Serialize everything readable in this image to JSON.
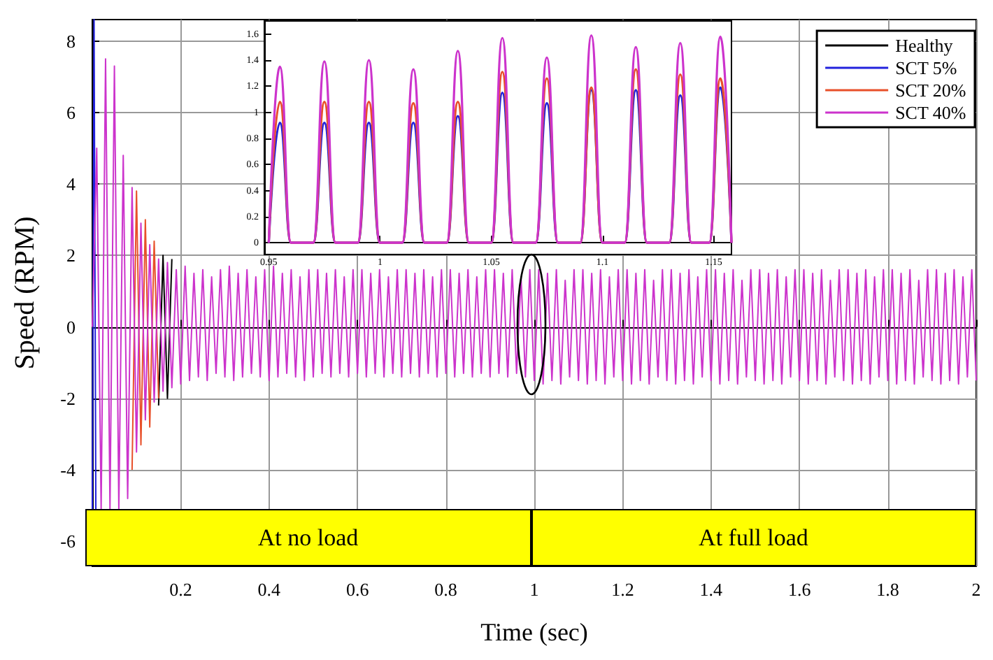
{
  "chart_data": [
    {
      "type": "line",
      "xlabel": "Time (sec)",
      "ylabel": "Speed (RPM)",
      "xlim": [
        0,
        2
      ],
      "ylim": [
        -6.7,
        8.6
      ],
      "xticks": [
        0.2,
        0.4,
        0.6,
        0.8,
        1,
        1.2,
        1.4,
        1.6,
        1.8,
        2
      ],
      "yticks": [
        -6,
        -4,
        -2,
        0,
        2,
        4,
        6,
        8
      ],
      "grid": true,
      "legend": "top right",
      "annotations": [
        "At no load",
        "At full load"
      ],
      "x": [
        0,
        0.01,
        0.02,
        0.03,
        0.04,
        0.05,
        0.06,
        0.07,
        0.08,
        0.09,
        0.1,
        0.11,
        0.12,
        0.13,
        0.14,
        0.15,
        0.16,
        0.17,
        0.18,
        0.19,
        0.2,
        0.21,
        0.22,
        0.23,
        0.24,
        0.25,
        0.26,
        0.27,
        0.28,
        0.29,
        0.3,
        0.31,
        0.32,
        0.33,
        0.34,
        0.35,
        0.36,
        0.37,
        0.38,
        0.39,
        0.4,
        0.41,
        0.42,
        0.43,
        0.44,
        0.45,
        0.46,
        0.47,
        0.48,
        0.49,
        0.5,
        0.51,
        0.52,
        0.53,
        0.54,
        0.55,
        0.56,
        0.57,
        0.58,
        0.59,
        0.6,
        0.61,
        0.62,
        0.63,
        0.64,
        0.65,
        0.66,
        0.67,
        0.68,
        0.69,
        0.7,
        0.71,
        0.72,
        0.73,
        0.74,
        0.75,
        0.76,
        0.77,
        0.78,
        0.79,
        0.8,
        0.81,
        0.82,
        0.83,
        0.84,
        0.85,
        0.86,
        0.87,
        0.88,
        0.89,
        0.9,
        0.91,
        0.92,
        0.93,
        0.94,
        0.95,
        0.96,
        0.97,
        0.98,
        0.99,
        1,
        1.01,
        1.02,
        1.03,
        1.04,
        1.05,
        1.06,
        1.07,
        1.08,
        1.09,
        1.1,
        1.11,
        1.12,
        1.13,
        1.14,
        1.15,
        1.16,
        1.17,
        1.18,
        1.19,
        1.2,
        1.21,
        1.22,
        1.23,
        1.24,
        1.25,
        1.26,
        1.27,
        1.28,
        1.29,
        1.3,
        1.31,
        1.32,
        1.33,
        1.34,
        1.35,
        1.36,
        1.37,
        1.38,
        1.39,
        1.4,
        1.41,
        1.42,
        1.43,
        1.44,
        1.45,
        1.46,
        1.47,
        1.48,
        1.49,
        1.5,
        1.51,
        1.52,
        1.53,
        1.54,
        1.55,
        1.56,
        1.57,
        1.58,
        1.59,
        1.6,
        1.61,
        1.62,
        1.63,
        1.64,
        1.65,
        1.66,
        1.67,
        1.68,
        1.69,
        1.7,
        1.71,
        1.72,
        1.73,
        1.74,
        1.75,
        1.76,
        1.77,
        1.78,
        1.79,
        1.8,
        1.81,
        1.82,
        1.83,
        1.84,
        1.85,
        1.86,
        1.87,
        1.88,
        1.89,
        1.9,
        1.91,
        1.92,
        1.93,
        1.94,
        1.95,
        1.96,
        1.97,
        1.98,
        1.99,
        2
      ],
      "series": [
        {
          "name": "Healthy",
          "color": "#000000",
          "x": [
            0.15,
            0.16,
            0.17,
            0.18
          ],
          "values": [
            -2.2,
            2.0,
            -2.0,
            1.9
          ]
        },
        {
          "name": "SCT 5%",
          "color": "#2222dd",
          "x": [
            0,
            0.004,
            0.008
          ],
          "values": [
            -5.1,
            8.6,
            -5.1
          ]
        },
        {
          "name": "SCT 20%",
          "color": "#e8502a",
          "x": [
            0.09,
            0.1,
            0.11,
            0.12,
            0.13,
            0.14,
            0.15
          ],
          "values": [
            -4.0,
            3.8,
            -3.3,
            3.0,
            -2.8,
            2.4,
            -2.0
          ]
        },
        {
          "name": "SCT 40%",
          "color": "#cc33cc",
          "values": [
            0,
            5.0,
            -5.1,
            7.5,
            -5.1,
            7.3,
            -5.1,
            4.8,
            -4.8,
            3.9,
            -3.5,
            2.9,
            -2.6,
            2.3,
            -2.1,
            1.9,
            -1.8,
            1.8,
            -1.7,
            1.6,
            -1.6,
            1.7,
            -1.5,
            1.5,
            -1.4,
            1.6,
            -1.5,
            1.4,
            -1.3,
            1.6,
            -1.4,
            1.7,
            -1.5,
            1.5,
            -1.4,
            1.6,
            -1.3,
            1.4,
            -1.4,
            1.6,
            -1.5,
            1.7,
            -1.4,
            1.5,
            -1.3,
            1.6,
            -1.4,
            1.4,
            -1.5,
            1.6,
            -1.4,
            1.6,
            -1.3,
            1.5,
            -1.4,
            1.6,
            -1.3,
            1.4,
            -1.4,
            1.6,
            -1.3,
            1.6,
            -1.4,
            1.5,
            -1.3,
            1.6,
            -1.4,
            1.4,
            -1.3,
            1.6,
            -1.4,
            1.6,
            -1.3,
            1.5,
            -1.4,
            1.6,
            -1.3,
            1.4,
            -1.4,
            1.6,
            -1.3,
            1.6,
            -1.4,
            1.5,
            -1.3,
            1.6,
            -1.4,
            1.4,
            -1.3,
            1.6,
            -1.4,
            1.6,
            -1.3,
            1.5,
            -1.4,
            1.6,
            -1.3,
            1.4,
            -1.4,
            1.6,
            -1.5,
            1.6,
            -1.6,
            1.5,
            -1.5,
            1.6,
            -1.6,
            1.3,
            -1.4,
            1.6,
            -1.5,
            1.6,
            -1.6,
            1.5,
            -1.5,
            1.6,
            -1.6,
            1.4,
            -1.4,
            1.6,
            -1.5,
            1.6,
            -1.6,
            1.5,
            -1.5,
            1.6,
            -1.6,
            1.3,
            -1.4,
            1.6,
            -1.5,
            1.6,
            -1.6,
            1.5,
            -1.5,
            1.6,
            -1.6,
            1.4,
            -1.4,
            1.6,
            -1.5,
            1.6,
            -1.6,
            1.5,
            -1.5,
            1.6,
            -1.6,
            1.3,
            -1.4,
            1.6,
            -1.5,
            1.6,
            -1.6,
            1.5,
            -1.5,
            1.6,
            -1.6,
            1.4,
            -1.4,
            1.6,
            -1.5,
            1.6,
            -1.6,
            1.5,
            -1.5,
            1.6,
            -1.6,
            1.3,
            -1.4,
            1.6,
            -1.5,
            1.6,
            -1.6,
            1.5,
            -1.5,
            1.6,
            -1.6,
            1.4,
            -1.4,
            1.6,
            -1.5,
            1.6,
            -1.6,
            1.5,
            -1.5,
            1.6,
            -1.6,
            1.3,
            -1.4,
            1.6,
            -1.5,
            1.6,
            -1.6,
            1.5,
            -1.5,
            1.6,
            -1.6,
            1.4,
            -1.4,
            1.6,
            -1.5
          ]
        }
      ]
    },
    {
      "type": "line",
      "xlim": [
        0.948,
        1.158
      ],
      "ylim": [
        -0.09,
        1.7
      ],
      "xticks": [
        0.95,
        1,
        1.05,
        1.1,
        1.15
      ],
      "yticks": [
        0,
        0.2,
        0.4,
        0.6,
        0.8,
        1,
        1.2,
        1.4,
        1.6
      ],
      "x": [
        0.95,
        0.955,
        0.96,
        0.97,
        0.975,
        0.98,
        0.99,
        0.995,
        1,
        1.01,
        1.015,
        1.02,
        1.03,
        1.035,
        1.04,
        1.05,
        1.055,
        1.06,
        1.07,
        1.075,
        1.08,
        1.09,
        1.095,
        1.1,
        1.11,
        1.115,
        1.12,
        1.13,
        1.135,
        1.14,
        1.148,
        1.153,
        1.158
      ],
      "series": [
        {
          "color": "#2222dd",
          "values": [
            0,
            0.92,
            0,
            0,
            0.92,
            0,
            0,
            0.92,
            0,
            0,
            0.92,
            0,
            0,
            0.97,
            0,
            0,
            1.15,
            0,
            0,
            1.07,
            0,
            0,
            1.17,
            0,
            0,
            1.17,
            0,
            0,
            1.13,
            0,
            0,
            1.19,
            0
          ]
        },
        {
          "color": "#e8502a",
          "values": [
            0,
            1.08,
            0,
            0,
            1.08,
            0,
            0,
            1.08,
            0,
            0,
            1.07,
            0,
            0,
            1.08,
            0,
            0,
            1.31,
            0,
            0,
            1.26,
            0,
            0,
            1.19,
            0,
            0,
            1.33,
            0,
            0,
            1.29,
            0,
            0,
            1.26,
            0
          ]
        },
        {
          "color": "#cc33cc",
          "values": [
            0,
            1.35,
            0,
            0,
            1.39,
            0,
            0,
            1.4,
            0,
            0,
            1.33,
            0,
            0,
            1.47,
            0,
            0,
            1.57,
            0,
            0,
            1.42,
            0,
            0,
            1.59,
            0,
            0,
            1.5,
            0,
            0,
            1.53,
            0,
            0,
            1.58,
            0
          ]
        }
      ]
    }
  ]
}
